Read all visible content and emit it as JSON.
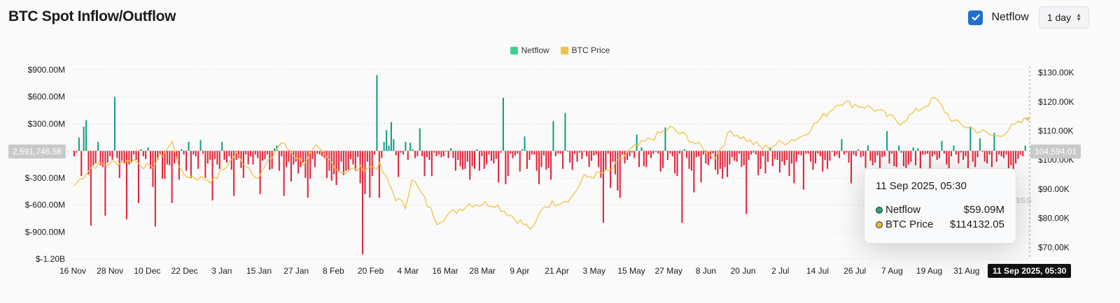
{
  "header": {
    "title": "BTC Spot Inflow/Outflow",
    "netflow_toggle_label": "Netflow",
    "netflow_checked": true,
    "interval": "1 day"
  },
  "legend": [
    {
      "label": "Netflow",
      "color": "#3fcf8e"
    },
    {
      "label": "BTC Price",
      "color": "#f3c048"
    }
  ],
  "tooltip": {
    "date": "11 Sep 2025, 05:30",
    "rows": [
      {
        "label": "Netflow",
        "value": "$59.09M",
        "color": "#26a17b"
      },
      {
        "label": "BTC Price",
        "value": "$114132.05",
        "color": "#e7b53a"
      }
    ]
  },
  "crosshair": {
    "left_value": "2,591,746.56",
    "right_value": "104,594.01",
    "x_label": "11 Sep 2025, 05:30"
  },
  "watermark": "ass",
  "colors": {
    "positive": "#16a085",
    "negative": "#e0273d",
    "price": "#f5c242",
    "grid": "#e6e6e6"
  },
  "chart_data": {
    "type": "bar",
    "title": "BTC Spot Inflow/Outflow",
    "left_axis": {
      "ticks": [
        "$900.00M",
        "$600.00M",
        "$300.00M",
        "0",
        "$-300.00M",
        "$-600.00M",
        "$-900.00M",
        "$-1.20B"
      ],
      "ylim": [
        -1200,
        900
      ],
      "unit": "$M"
    },
    "right_axis": {
      "ticks": [
        "$130.00K",
        "$120.00K",
        "$110.00K",
        "$100.00K",
        "$90.00K",
        "$80.00K",
        "$70.00K"
      ],
      "ylim": [
        66000,
        131000
      ],
      "unit": "$"
    },
    "x_ticks": [
      "16 Nov",
      "28 Nov",
      "10 Dec",
      "22 Dec",
      "3 Jan",
      "15 Jan",
      "27 Jan",
      "8 Feb",
      "20 Feb",
      "4 Mar",
      "16 Mar",
      "28 Mar",
      "9 Apr",
      "21 Apr",
      "3 May",
      "15 May",
      "27 May",
      "8 Jun",
      "20 Jun",
      "2 Jul",
      "14 Jul",
      "26 Jul",
      "7 Aug",
      "19 Aug",
      "31 Aug"
    ],
    "grid": true,
    "series": [
      {
        "name": "Netflow",
        "unit": "$M",
        "values": [
          -60,
          -20,
          150,
          -280,
          270,
          340,
          -260,
          -830,
          -160,
          -140,
          100,
          -160,
          -180,
          -720,
          -130,
          -60,
          -100,
          600,
          -80,
          -300,
          -110,
          -140,
          -760,
          -150,
          -120,
          -40,
          -100,
          -580,
          20,
          -60,
          -90,
          40,
          -200,
          -400,
          -840,
          -100,
          -40,
          -310,
          -310,
          -150,
          -160,
          -580,
          -140,
          -90,
          -320,
          20,
          -40,
          -220,
          100,
          -300,
          -40,
          -60,
          -200,
          120,
          -30,
          -300,
          -140,
          -100,
          -550,
          -90,
          -150,
          -200,
          100,
          -100,
          -130,
          -60,
          -210,
          -500,
          -100,
          -80,
          -190,
          -300,
          -40,
          -150,
          -60,
          -150,
          -40,
          -80,
          -480,
          -110,
          -90,
          -40,
          -210,
          -200,
          30,
          60,
          -220,
          -60,
          -500,
          -180,
          -120,
          -340,
          -150,
          -120,
          -250,
          -180,
          -130,
          -300,
          -520,
          -310,
          -90,
          -180,
          -30,
          -40,
          -60,
          -80,
          -300,
          -220,
          -330,
          -260,
          -380,
          -230,
          -120,
          -270,
          -220,
          -210,
          -90,
          -150,
          -220,
          -70,
          -360,
          -1150,
          -480,
          -120,
          -520,
          -280,
          -40,
          840,
          -520,
          -80,
          100,
          230,
          60,
          320,
          130,
          -50,
          -290,
          -20,
          -40,
          100,
          -100,
          90,
          20,
          -80,
          -60,
          250,
          -60,
          -280,
          -70,
          -100,
          -280,
          -20,
          -60,
          -40,
          -70,
          -60,
          -10,
          -80,
          30,
          -80,
          -220,
          -100,
          -170,
          -210,
          -200,
          -120,
          -320,
          -170,
          -200,
          20,
          -220,
          -60,
          -200,
          -150,
          -40,
          -110,
          -140,
          -90,
          -350,
          -20,
          590,
          -370,
          -280,
          -30,
          -80,
          -50,
          -30,
          -230,
          20,
          160,
          -200,
          -100,
          -40,
          -40,
          -220,
          -370,
          -180,
          -50,
          -210,
          -190,
          -320,
          330,
          -60,
          -30,
          -30,
          -200,
          420,
          -10,
          -130,
          -210,
          -30,
          -120,
          -20,
          -90,
          -10,
          -60,
          -180,
          -110,
          -50,
          -40,
          -180,
          -300,
          -800,
          -210,
          -30,
          -410,
          -120,
          -260,
          -440,
          -520,
          -40,
          -140,
          -100,
          -60,
          -20,
          -80,
          180,
          -180,
          40,
          -170,
          -180,
          -40,
          -80,
          -30,
          -10,
          -30,
          -230,
          -190,
          260,
          -100,
          -30,
          -60,
          -250,
          -280,
          -30,
          -800,
          20,
          -80,
          -200,
          -220,
          -460,
          -70,
          -60,
          -350,
          -40,
          -140,
          -160,
          -90,
          -30,
          -210,
          -260,
          -200,
          -310,
          -180,
          -290,
          -150,
          -70,
          -110,
          -120,
          -30,
          -180,
          -160,
          -700,
          -100,
          -40,
          -20,
          -40,
          -270,
          -200,
          -60,
          -250,
          -120,
          40,
          -170,
          -90,
          -100,
          -240,
          -120,
          -160,
          -100,
          -280,
          -140,
          -360,
          -120,
          -40,
          -50,
          -430,
          -30,
          -30,
          -120,
          -210,
          -140,
          -30,
          -60,
          -230,
          -100,
          -200,
          -110,
          -10,
          -60,
          -40,
          -80,
          130,
          -40,
          -20,
          -130,
          -360,
          -40,
          -60,
          20,
          -70,
          -60,
          -190,
          60,
          -110,
          -160,
          -130,
          -50,
          -200,
          -70,
          -60,
          220,
          -140,
          -30,
          -170,
          -180,
          60,
          -20,
          -170,
          -190,
          -150,
          -120,
          40,
          -160,
          30,
          -250,
          -40,
          -40,
          -30,
          -240,
          -60,
          -40,
          -100,
          -80,
          110,
          -30,
          -150,
          -200,
          -60,
          60,
          -40,
          -140,
          -20,
          -100,
          -60,
          -250,
          270,
          -120,
          -180,
          -70,
          140,
          -10,
          -120,
          -140,
          -40,
          -180,
          200,
          -120,
          -40,
          -60,
          -80,
          -40,
          -200,
          -160,
          -220,
          -140,
          -90,
          -40,
          -60,
          59
        ],
        "approx_dates": "16 Nov 2024 to 11 Sep 2025, daily"
      },
      {
        "name": "BTC Price",
        "unit": "$",
        "keypoints": [
          [
            "16 Nov",
            91000
          ],
          [
            "22 Nov",
            98000
          ],
          [
            "5 Dec",
            100000
          ],
          [
            "10 Dec",
            97000
          ],
          [
            "17 Dec",
            106000
          ],
          [
            "20 Dec",
            95000
          ],
          [
            "30 Dec",
            93000
          ],
          [
            "6 Jan",
            102000
          ],
          [
            "13 Jan",
            94000
          ],
          [
            "20 Jan",
            106000
          ],
          [
            "27 Jan",
            99000
          ],
          [
            "31 Jan",
            104000
          ],
          [
            "8 Feb",
            96000
          ],
          [
            "20 Feb",
            98000
          ],
          [
            "25 Feb",
            87000
          ],
          [
            "28 Feb",
            84000
          ],
          [
            "2 Mar",
            94000
          ],
          [
            "10 Mar",
            79000
          ],
          [
            "20 Mar",
            85000
          ],
          [
            "28 Mar",
            85000
          ],
          [
            "6 Apr",
            78000
          ],
          [
            "9 Apr",
            76000
          ],
          [
            "12 Apr",
            84000
          ],
          [
            "21 Apr",
            87000
          ],
          [
            "25 Apr",
            94000
          ],
          [
            "3 May",
            96000
          ],
          [
            "9 May",
            103000
          ],
          [
            "22 May",
            111000
          ],
          [
            "27 May",
            108000
          ],
          [
            "5 Jun",
            101000
          ],
          [
            "10 Jun",
            110000
          ],
          [
            "20 Jun",
            104000
          ],
          [
            "2 Jul",
            108000
          ],
          [
            "11 Jul",
            117000
          ],
          [
            "14 Jul",
            120000
          ],
          [
            "24 Jul",
            118000
          ],
          [
            "2 Aug",
            113000
          ],
          [
            "13 Aug",
            121000
          ],
          [
            "19 Aug",
            113000
          ],
          [
            "1 Sep",
            108000
          ],
          [
            "11 Sep",
            114132
          ]
        ]
      }
    ]
  }
}
